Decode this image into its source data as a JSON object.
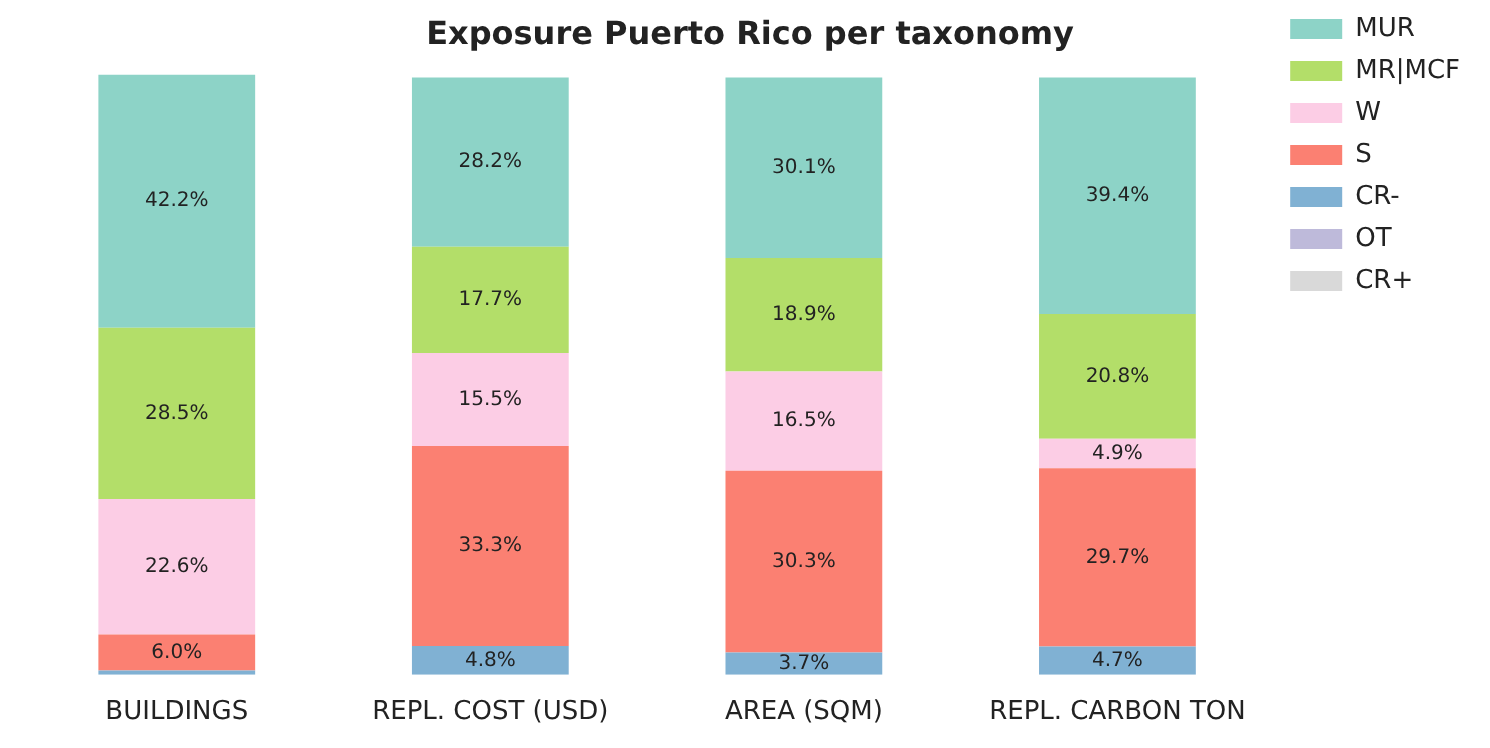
{
  "chart_data": {
    "type": "bar",
    "stacked": true,
    "title": "Exposure Puerto Rico per taxonomy",
    "categories": [
      "BUILDINGS",
      "REPL. COST (USD)",
      "AREA (SQM)",
      "REPL. CARBON TON"
    ],
    "tick_labels": "x",
    "grid": false,
    "legend": "top right",
    "series": [
      {
        "name": "CR+",
        "color": "#d9d9d9",
        "values": [
          0,
          0,
          0,
          0
        ],
        "value_labels": [
          null,
          null,
          null,
          null
        ]
      },
      {
        "name": "OT",
        "color": "#bebada",
        "values": [
          0,
          0,
          0,
          0
        ],
        "value_labels": [
          null,
          null,
          null,
          null
        ]
      },
      {
        "name": "CR-",
        "color": "#80b1d3",
        "values": [
          0.7,
          4.8,
          3.7,
          4.7
        ],
        "value_labels": [
          null,
          "4.8%",
          "3.7%",
          "4.7%"
        ]
      },
      {
        "name": "S",
        "color": "#fb8072",
        "values": [
          6.0,
          33.3,
          30.3,
          29.7
        ],
        "value_labels": [
          "6.0%",
          "33.3%",
          "30.3%",
          "29.7%"
        ]
      },
      {
        "name": "W",
        "color": "#fccde5",
        "values": [
          22.6,
          15.5,
          16.5,
          4.9
        ],
        "value_labels": [
          "22.6%",
          "15.5%",
          "16.5%",
          "4.9%"
        ]
      },
      {
        "name": "MR|MCF",
        "color": "#b3de69",
        "values": [
          28.5,
          17.7,
          18.9,
          20.8
        ],
        "value_labels": [
          "28.5%",
          "17.7%",
          "18.9%",
          "20.8%"
        ]
      },
      {
        "name": "MUR",
        "color": "#8dd3c7",
        "values": [
          42.2,
          28.2,
          30.1,
          39.4
        ],
        "value_labels": [
          "42.2%",
          "28.2%",
          "30.1%",
          "39.4%"
        ]
      }
    ]
  }
}
